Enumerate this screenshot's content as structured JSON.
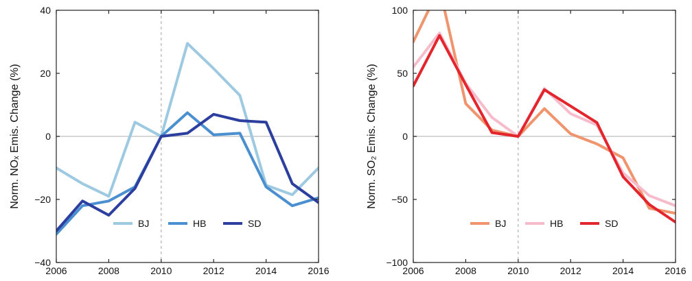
{
  "chart_data": [
    {
      "type": "line",
      "ylabel": "Norm. NOₓ Emis. Change (%)",
      "xlabel": "",
      "xlim": [
        2006,
        2016
      ],
      "ylim": [
        -40,
        40
      ],
      "xticks": [
        2006,
        2008,
        2010,
        2012,
        2014,
        2016
      ],
      "yticks": [
        -40,
        -20,
        0,
        20,
        40
      ],
      "x": [
        2006,
        2007,
        2008,
        2009,
        2010,
        2011,
        2012,
        2013,
        2014,
        2015,
        2016
      ],
      "reference_lines": {
        "horizontal_y": 0,
        "vertical_x": 2010
      },
      "grid": false,
      "legend_position": "bottom-center",
      "series": [
        {
          "name": "BJ",
          "color": "#9ecae1",
          "values": [
            -10,
            -15,
            -19,
            4.5,
            0,
            29.5,
            21.5,
            13,
            -15.5,
            -18.5,
            -10
          ]
        },
        {
          "name": "HB",
          "color": "#4a8fd0",
          "values": [
            -31,
            -22,
            -20.5,
            -16,
            0,
            7.5,
            0.5,
            1,
            -16,
            -22,
            -19.5
          ]
        },
        {
          "name": "SD",
          "color": "#2c3e9e",
          "values": [
            -30,
            -20.5,
            -25,
            -16.5,
            0,
            1,
            7,
            5,
            4.5,
            -15,
            -21
          ]
        }
      ]
    },
    {
      "type": "line",
      "ylabel": "Norm. SO₂ Emis. Change (%)",
      "xlabel": "",
      "xlim": [
        2006,
        2016
      ],
      "ylim": [
        -100,
        100
      ],
      "xticks": [
        2006,
        2008,
        2010,
        2012,
        2014,
        2016
      ],
      "yticks": [
        -100,
        -50,
        0,
        50,
        100
      ],
      "x": [
        2006,
        2007,
        2008,
        2009,
        2010,
        2011,
        2012,
        2013,
        2014,
        2015,
        2016
      ],
      "reference_lines": {
        "horizontal_y": 0,
        "vertical_x": 2010
      },
      "grid": false,
      "legend_position": "bottom-center",
      "series": [
        {
          "name": "BJ",
          "color": "#f0946e",
          "values": [
            75,
            118,
            26,
            5,
            0,
            22,
            2,
            -6,
            -17,
            -57,
            -61
          ]
        },
        {
          "name": "HB",
          "color": "#f7bccc",
          "values": [
            55,
            82,
            42,
            15,
            0,
            38,
            18,
            9,
            -29,
            -47,
            -55
          ]
        },
        {
          "name": "SD",
          "color": "#e3262d",
          "values": [
            40,
            80,
            41,
            3,
            0,
            37,
            24,
            11,
            -32,
            -54,
            -68
          ]
        }
      ]
    }
  ]
}
